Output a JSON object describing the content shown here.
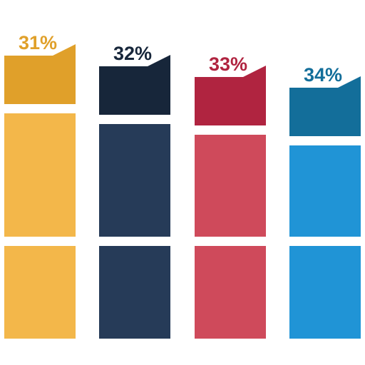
{
  "chart_data": {
    "type": "bar",
    "title": "",
    "xlabel": "",
    "ylabel": "",
    "categories": [
      "",
      "",
      "",
      ""
    ],
    "values": [
      31,
      32,
      33,
      34
    ],
    "value_labels": [
      "31%",
      "32%",
      "33%",
      "34%"
    ],
    "unit": "%",
    "colors": {
      "top": [
        "#E0A02A",
        "#17263A",
        "#B02440",
        "#136E9A"
      ],
      "body": [
        "#F3B74A",
        "#263B58",
        "#CF4A5B",
        "#2094D6"
      ]
    }
  }
}
